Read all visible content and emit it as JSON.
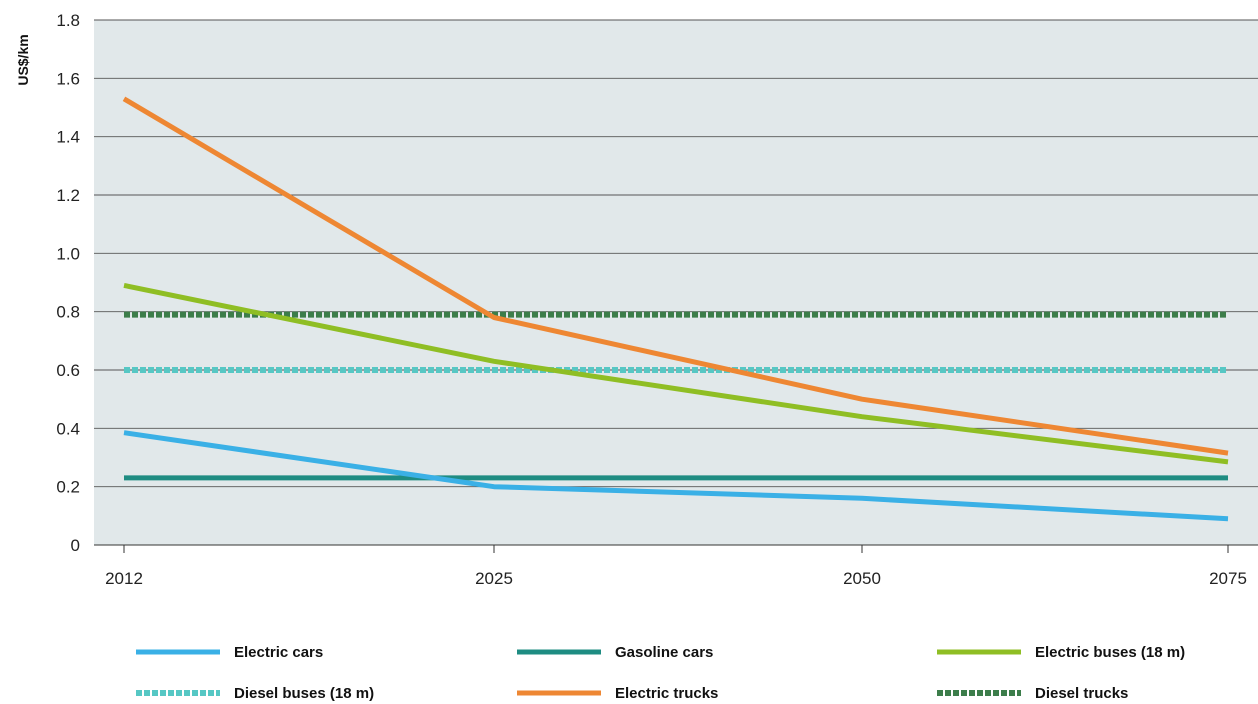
{
  "chart_data": {
    "type": "line",
    "ylabel": "US$/km",
    "xlabel": "",
    "title": "",
    "categories": [
      "2012",
      "2025",
      "2050",
      "2075"
    ],
    "ylim": [
      0,
      1.8
    ],
    "yticks": [
      "0",
      "0.2",
      "0.4",
      "0.6",
      "0.8",
      "1.0",
      "1.2",
      "1.4",
      "1.6",
      "1.8"
    ],
    "grid": "horizontal",
    "background": "#e1e8ea",
    "legend_position": "bottom",
    "series": [
      {
        "name": "Electric cars",
        "values": [
          0.385,
          0.2,
          0.16,
          0.09
        ],
        "color": "#3ab0e6",
        "style": "solid"
      },
      {
        "name": "Gasoline cars",
        "values": [
          0.23,
          0.23,
          0.23,
          0.23
        ],
        "color": "#1e8c82",
        "style": "solid"
      },
      {
        "name": "Electric buses (18 m)",
        "values": [
          0.89,
          0.63,
          0.44,
          0.285
        ],
        "color": "#8fbe24",
        "style": "solid"
      },
      {
        "name": "Diesel buses (18 m)",
        "values": [
          0.6,
          0.6,
          0.6,
          0.6
        ],
        "color": "#56c7c4",
        "style": "dotted"
      },
      {
        "name": "Electric trucks",
        "values": [
          1.53,
          0.78,
          0.5,
          0.315
        ],
        "color": "#ee8733",
        "style": "solid"
      },
      {
        "name": "Diesel trucks",
        "values": [
          0.79,
          0.79,
          0.79,
          0.79
        ],
        "color": "#3c7d4a",
        "style": "dotted"
      }
    ]
  }
}
